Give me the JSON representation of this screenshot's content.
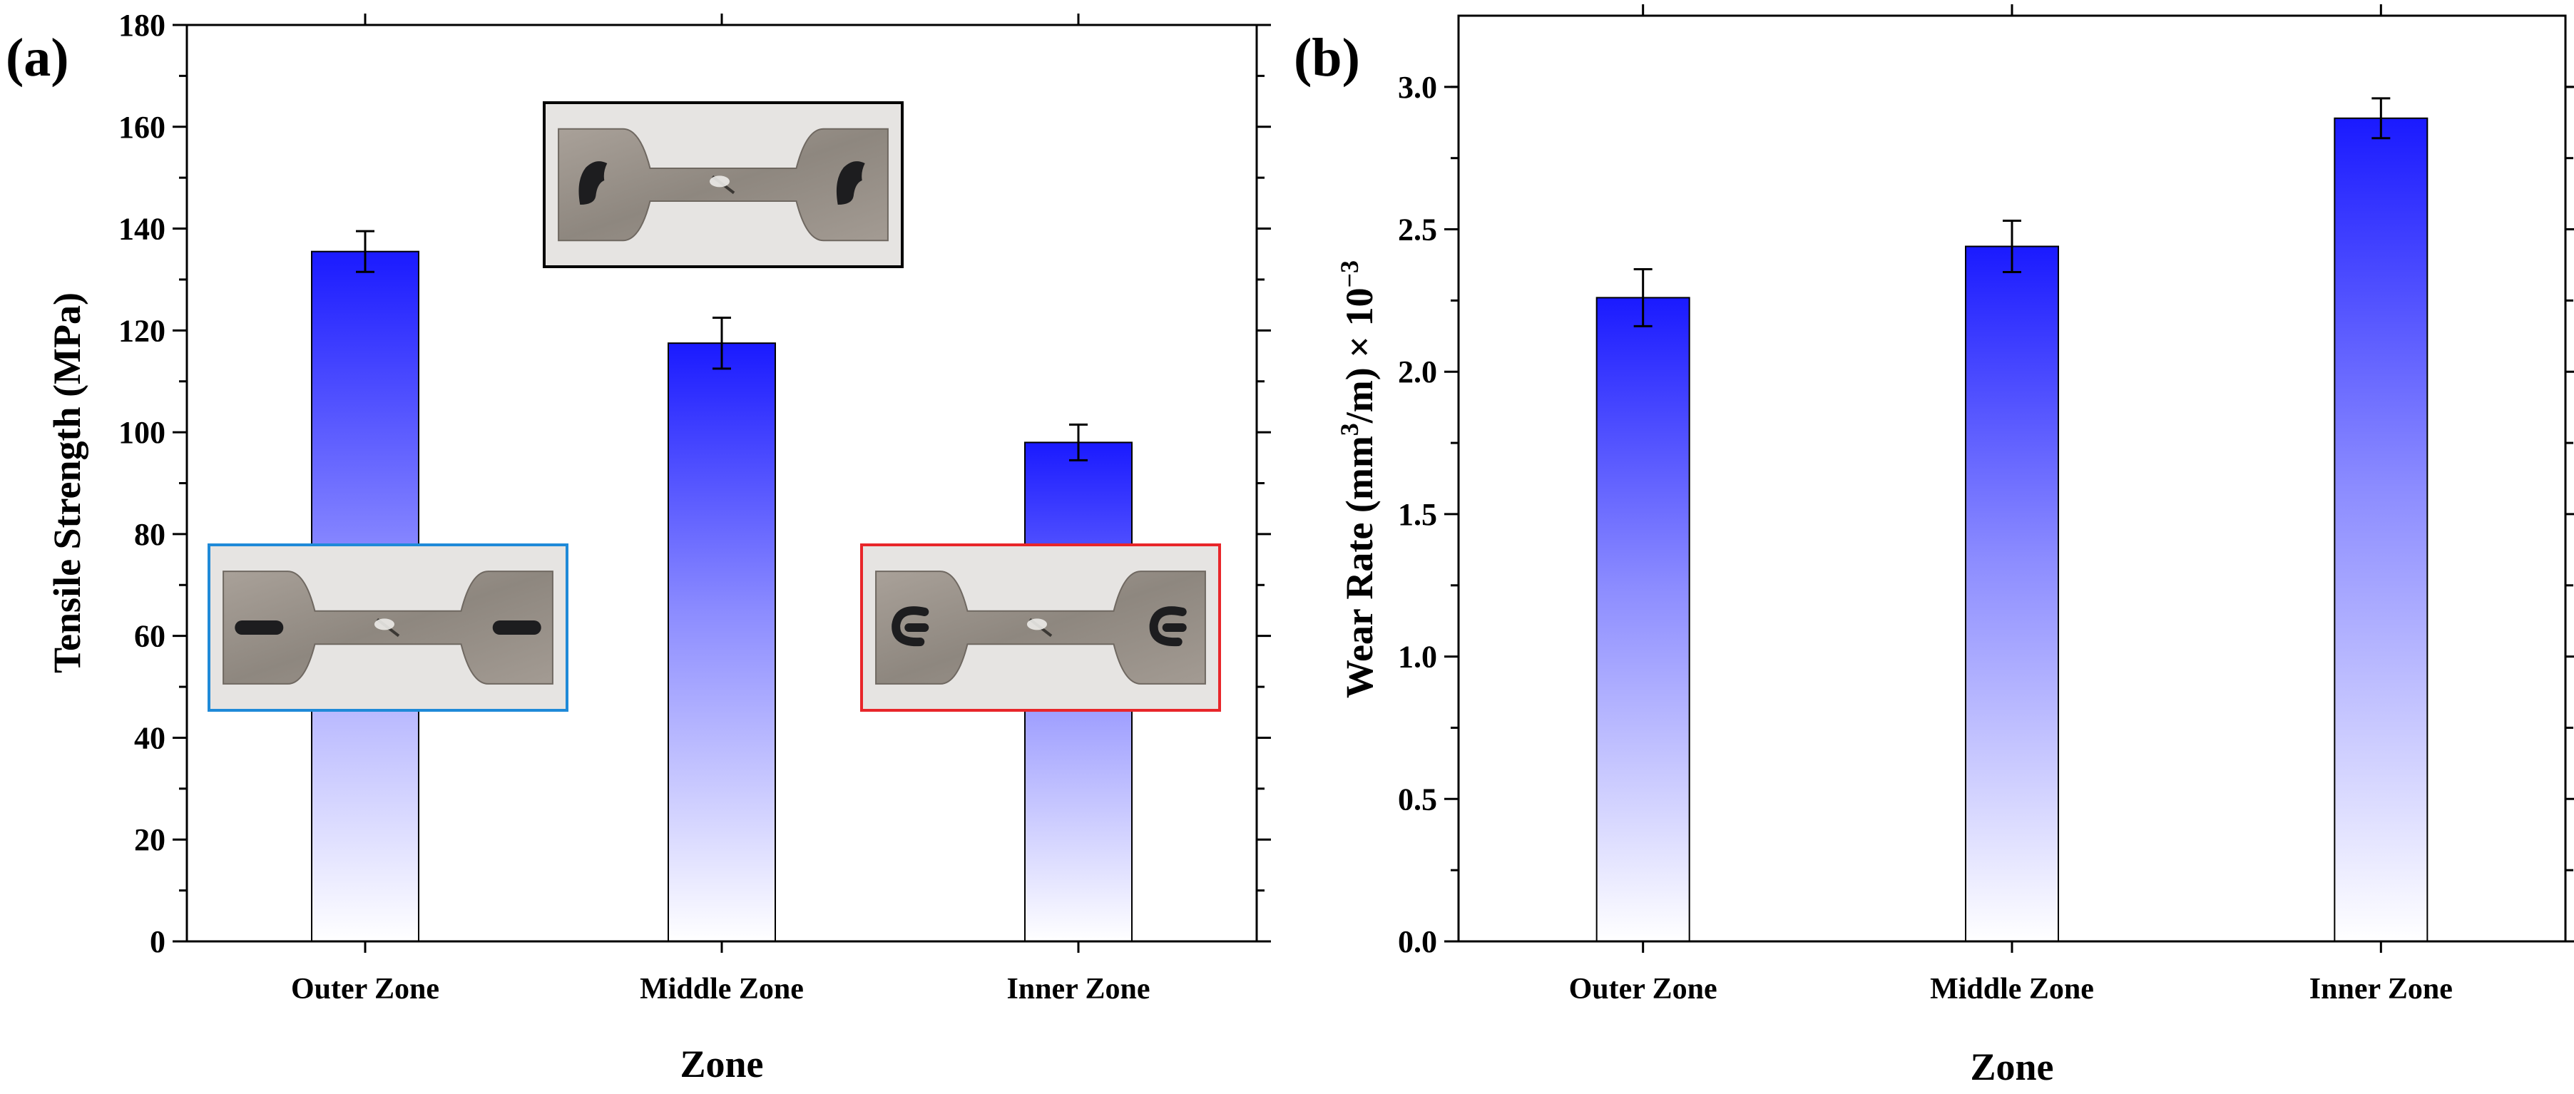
{
  "colors": {
    "bar_top": "#1a1aff",
    "bar_bottom": "#ffffff",
    "axis": "#000000",
    "inset_blue_border": "#1f8ad8",
    "inset_red_border": "#e8262a",
    "inset_black_border": "#000000",
    "specimen_metal": "#9a9289",
    "photo_background": "#e6e4e2",
    "marker_ink": "#1d1d1f"
  },
  "chart_data": [
    {
      "panel_label": "(a)",
      "type": "bar",
      "title": "",
      "categories": [
        "Outer Zone",
        "Middle Zone",
        "Inner Zone"
      ],
      "values": [
        135.5,
        117.5,
        98
      ],
      "errors": [
        4,
        5,
        3.5
      ],
      "xlabel": "Zone",
      "ylabel": "Tensile Strength (MPa)",
      "ylim": [
        0,
        180
      ],
      "yticks": [
        0,
        20,
        40,
        60,
        80,
        100,
        120,
        140,
        160,
        180
      ],
      "ytick_labels": [
        "0",
        "20",
        "40",
        "60",
        "80",
        "100",
        "120",
        "140",
        "160",
        "180"
      ],
      "insets": [
        {
          "name": "outer-zone-specimen-photo",
          "frame": "blue",
          "marker": "bars"
        },
        {
          "name": "middle-zone-specimen-photo",
          "frame": "black",
          "marker": "blobs"
        },
        {
          "name": "inner-zone-specimen-photo",
          "frame": "red",
          "marker": "swirls"
        }
      ]
    },
    {
      "panel_label": "(b)",
      "type": "bar",
      "title": "",
      "categories": [
        "Outer Zone",
        "Middle Zone",
        "Inner Zone"
      ],
      "values": [
        2.26,
        2.44,
        2.89
      ],
      "errors": [
        0.1,
        0.09,
        0.07
      ],
      "xlabel": "Zone",
      "ylabel_parts": {
        "pre": "Wear Rate (mm",
        "sup1": "3",
        "mid": "/m) × 10",
        "sup2": "−3"
      },
      "ylim": [
        0,
        3.25
      ],
      "yticks": [
        0,
        0.5,
        1,
        1.5,
        2,
        2.5,
        3
      ],
      "ytick_labels": [
        "0.0",
        "0.5",
        "1.0",
        "1.5",
        "2.0",
        "2.5",
        "3.0"
      ]
    }
  ]
}
